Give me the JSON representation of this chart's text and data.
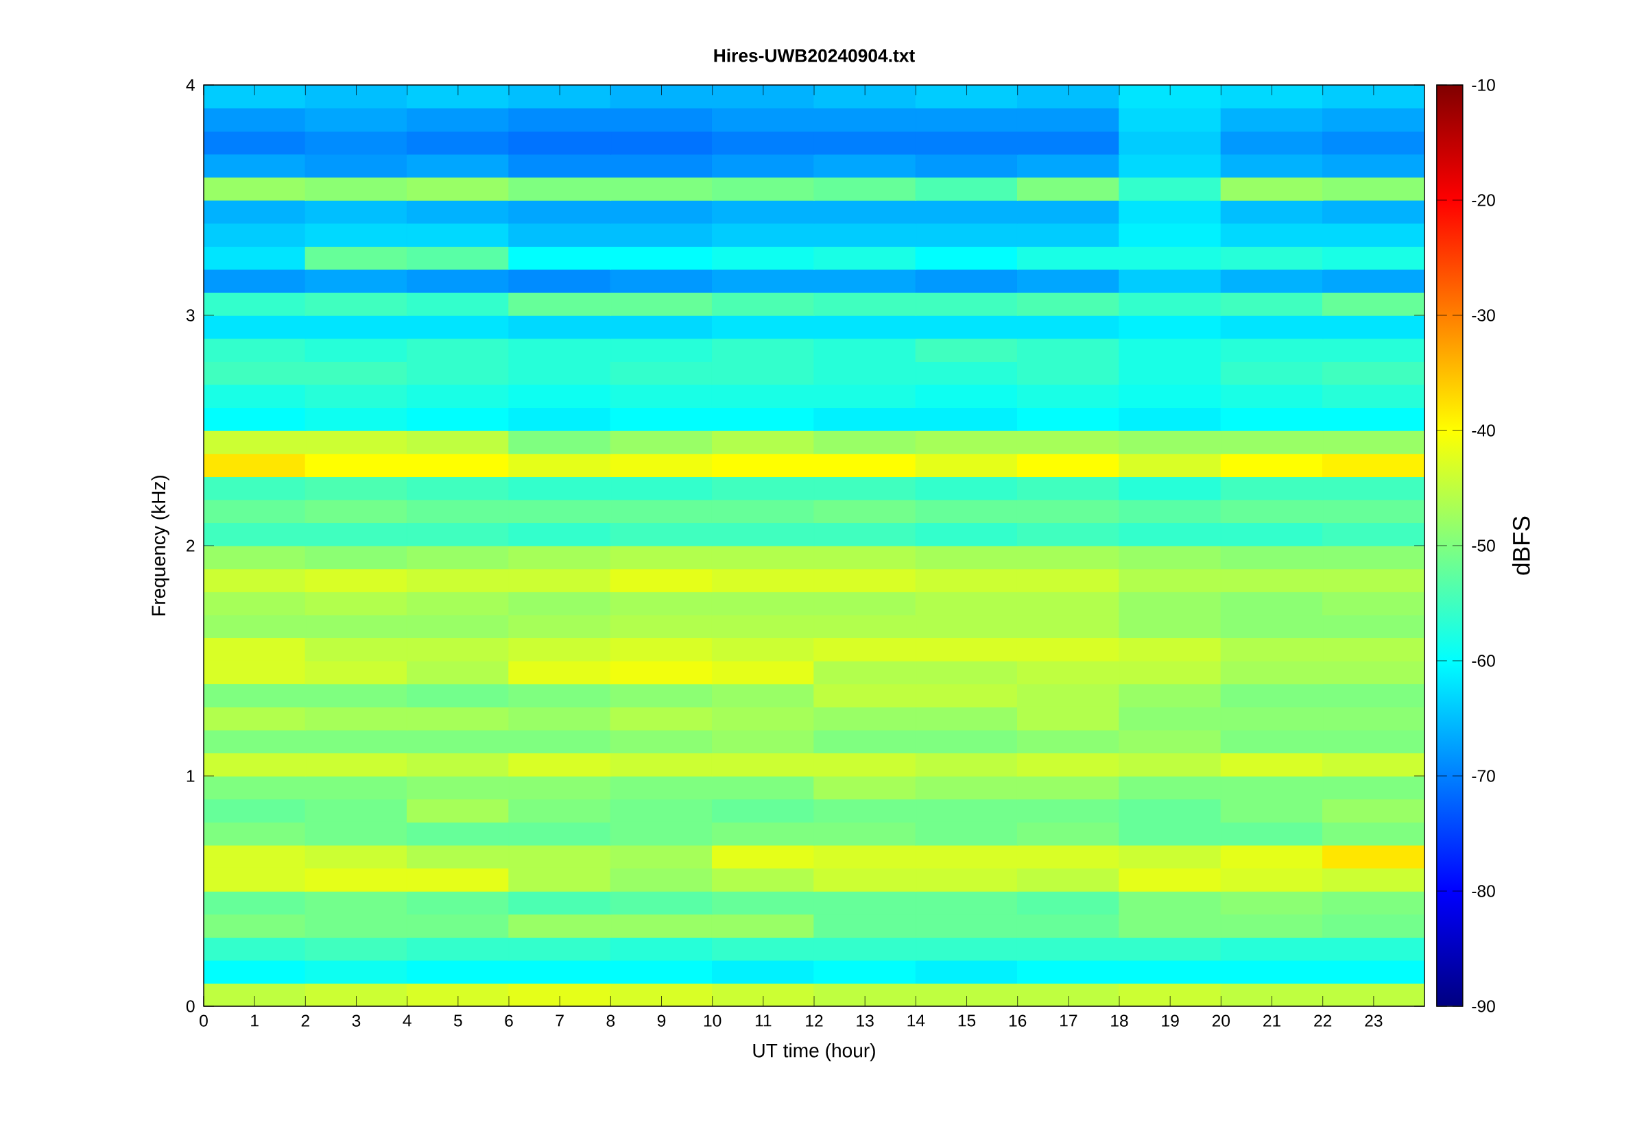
{
  "chart_data": {
    "type": "heatmap",
    "title": "Hires-UWB20240904.txt",
    "xlabel": "UT time (hour)",
    "ylabel": "Frequency (kHz)",
    "clabel": "dBFS",
    "xlim": [
      0,
      24
    ],
    "xticks": [
      0,
      1,
      2,
      3,
      4,
      5,
      6,
      7,
      8,
      9,
      10,
      11,
      12,
      13,
      14,
      15,
      16,
      17,
      18,
      19,
      20,
      21,
      22,
      23
    ],
    "ylim": [
      0,
      4
    ],
    "yticks": [
      0,
      1,
      2,
      3,
      4
    ],
    "clim": [
      -90,
      -10
    ],
    "cticks": [
      -90,
      -80,
      -70,
      -60,
      -50,
      -40,
      -30,
      -20,
      -10
    ],
    "cells": [
      [
        -64,
        -65,
        -64,
        -65,
        -66,
        -66,
        -65,
        -64,
        -65,
        -62,
        -63,
        -64
      ],
      [
        -68,
        -67,
        -68,
        -69,
        -69,
        -68,
        -68,
        -68,
        -68,
        -63,
        -66,
        -67
      ],
      [
        -70,
        -69,
        -70,
        -71,
        -71,
        -70,
        -70,
        -70,
        -70,
        -64,
        -68,
        -69
      ],
      [
        -67,
        -68,
        -67,
        -69,
        -69,
        -68,
        -67,
        -68,
        -67,
        -63,
        -66,
        -67
      ],
      [
        -48,
        -49,
        -48,
        -50,
        -50,
        -51,
        -52,
        -54,
        -50,
        -56,
        -48,
        -49
      ],
      [
        -66,
        -65,
        -66,
        -67,
        -67,
        -66,
        -66,
        -66,
        -66,
        -62,
        -65,
        -66
      ],
      [
        -64,
        -63,
        -63,
        -65,
        -65,
        -64,
        -64,
        -64,
        -64,
        -61,
        -63,
        -63
      ],
      [
        -62,
        -52,
        -53,
        -60,
        -60,
        -59,
        -58,
        -60,
        -58,
        -58,
        -57,
        -58
      ],
      [
        -68,
        -67,
        -68,
        -69,
        -68,
        -67,
        -67,
        -68,
        -67,
        -64,
        -66,
        -67
      ],
      [
        -56,
        -55,
        -56,
        -52,
        -52,
        -54,
        -55,
        -55,
        -54,
        -56,
        -55,
        -52
      ],
      [
        -62,
        -62,
        -62,
        -63,
        -63,
        -62,
        -62,
        -62,
        -62,
        -61,
        -62,
        -62
      ],
      [
        -56,
        -57,
        -56,
        -57,
        -57,
        -56,
        -57,
        -55,
        -56,
        -58,
        -57,
        -57
      ],
      [
        -55,
        -55,
        -56,
        -57,
        -56,
        -56,
        -57,
        -57,
        -56,
        -58,
        -56,
        -55
      ],
      [
        -58,
        -57,
        -58,
        -59,
        -58,
        -58,
        -58,
        -59,
        -58,
        -59,
        -58,
        -57
      ],
      [
        -60,
        -59,
        -60,
        -61,
        -60,
        -60,
        -61,
        -61,
        -60,
        -61,
        -60,
        -60
      ],
      [
        -44,
        -44,
        -45,
        -50,
        -48,
        -46,
        -48,
        -47,
        -47,
        -48,
        -48,
        -48
      ],
      [
        -38,
        -40,
        -40,
        -42,
        -41,
        -40,
        -40,
        -42,
        -40,
        -43,
        -40,
        -39
      ],
      [
        -55,
        -54,
        -55,
        -56,
        -56,
        -55,
        -55,
        -56,
        -55,
        -57,
        -55,
        -55
      ],
      [
        -52,
        -51,
        -52,
        -52,
        -52,
        -52,
        -51,
        -52,
        -52,
        -53,
        -52,
        -52
      ],
      [
        -55,
        -55,
        -55,
        -56,
        -55,
        -55,
        -55,
        -56,
        -55,
        -56,
        -56,
        -55
      ],
      [
        -48,
        -49,
        -48,
        -47,
        -46,
        -46,
        -46,
        -47,
        -47,
        -48,
        -49,
        -49
      ],
      [
        -44,
        -43,
        -44,
        -44,
        -42,
        -43,
        -43,
        -44,
        -44,
        -46,
        -46,
        -46
      ],
      [
        -47,
        -46,
        -47,
        -48,
        -47,
        -47,
        -47,
        -46,
        -46,
        -48,
        -49,
        -48
      ],
      [
        -48,
        -48,
        -48,
        -47,
        -46,
        -46,
        -46,
        -46,
        -46,
        -48,
        -49,
        -49
      ],
      [
        -43,
        -45,
        -45,
        -44,
        -43,
        -44,
        -43,
        -43,
        -43,
        -44,
        -46,
        -46
      ],
      [
        -43,
        -44,
        -46,
        -42,
        -41,
        -42,
        -46,
        -46,
        -45,
        -45,
        -47,
        -47
      ],
      [
        -50,
        -50,
        -51,
        -50,
        -49,
        -48,
        -45,
        -45,
        -46,
        -48,
        -50,
        -50
      ],
      [
        -46,
        -47,
        -47,
        -48,
        -46,
        -47,
        -48,
        -48,
        -46,
        -49,
        -49,
        -49
      ],
      [
        -50,
        -50,
        -50,
        -50,
        -49,
        -48,
        -50,
        -50,
        -49,
        -48,
        -50,
        -50
      ],
      [
        -44,
        -44,
        -45,
        -43,
        -44,
        -44,
        -44,
        -45,
        -44,
        -45,
        -43,
        -44
      ],
      [
        -50,
        -50,
        -49,
        -49,
        -50,
        -50,
        -47,
        -48,
        -48,
        -50,
        -50,
        -50
      ],
      [
        -52,
        -51,
        -47,
        -50,
        -51,
        -52,
        -51,
        -51,
        -51,
        -52,
        -50,
        -48
      ],
      [
        -50,
        -51,
        -52,
        -52,
        -51,
        -50,
        -50,
        -51,
        -50,
        -52,
        -52,
        -50
      ],
      [
        -43,
        -44,
        -46,
        -46,
        -47,
        -42,
        -43,
        -43,
        -43,
        -44,
        -42,
        -38
      ],
      [
        -43,
        -42,
        -42,
        -46,
        -48,
        -46,
        -44,
        -44,
        -45,
        -42,
        -43,
        -44
      ],
      [
        -52,
        -51,
        -52,
        -54,
        -53,
        -52,
        -52,
        -52,
        -53,
        -50,
        -49,
        -50
      ],
      [
        -50,
        -51,
        -51,
        -48,
        -48,
        -48,
        -52,
        -52,
        -52,
        -50,
        -50,
        -51
      ],
      [
        -56,
        -55,
        -56,
        -56,
        -57,
        -56,
        -56,
        -56,
        -56,
        -56,
        -57,
        -57
      ],
      [
        -60,
        -59,
        -60,
        -60,
        -60,
        -61,
        -60,
        -61,
        -60,
        -60,
        -60,
        -60
      ],
      [
        -45,
        -44,
        -43,
        -42,
        -43,
        -44,
        -45,
        -45,
        -45,
        -44,
        -45,
        -45
      ]
    ]
  }
}
